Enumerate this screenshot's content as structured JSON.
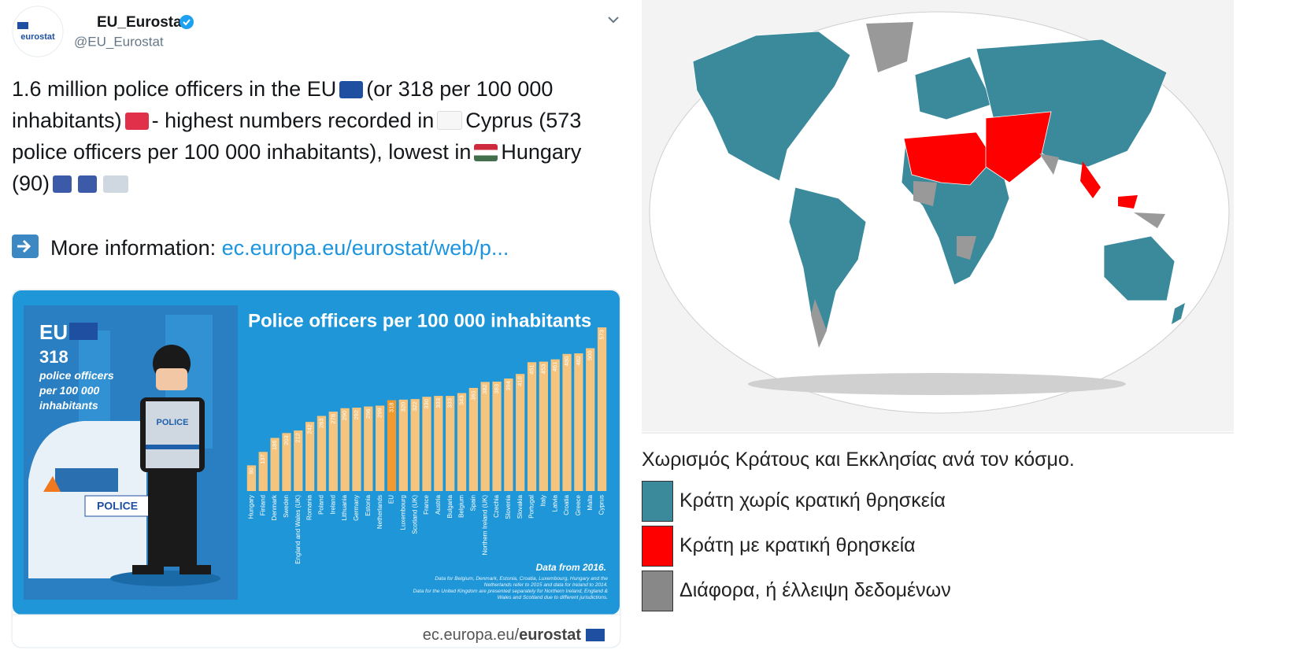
{
  "tweet": {
    "avatar_label": "eurostat",
    "author": "EU_Eurostat",
    "handle": "@EU_Eurostat",
    "text": [
      "1.6 million police officers in the EU",
      "(or 318 per 100 000 inhabitants)",
      "- highest numbers recorded in",
      "Cyprus (573 police officers per 100 000 inhabitants), lowest in",
      "Hungary (90)"
    ],
    "more_info_label": "More information:",
    "link": "ec.europa.eu/eurostat/web/p..."
  },
  "infographic": {
    "eu_label": "EU",
    "eu_value": 318,
    "eu_caption": "police officers per 100 000 inhabitants",
    "police_labels": [
      "POLICE",
      "POLICE"
    ],
    "data_note": "Data from 2016.",
    "footnotes": [
      "Data for Belgium, Denmark, Estonia, Croatia, Luxembourg, Hungary and the Netherlands refer to 2015 and data for Ireland to 2014.",
      "Data for the United Kingdom are presented separately for Northern Ireland, England & Wales and Scotland due to different jurisdictions."
    ],
    "footer_domain": "ec.europa.eu/",
    "footer_brand": "eurostat"
  },
  "chart_data": {
    "type": "bar",
    "title": "Police officers per 100 000 inhabitants",
    "categories": [
      "Hungary",
      "Finland",
      "Denmark",
      "Sweden",
      "England and Wales (UK)",
      "Romania",
      "Poland",
      "Ireland",
      "Lithuania",
      "Germany",
      "Estonia",
      "Netherlands",
      "EU",
      "Luxembourg",
      "Scotland (UK)",
      "France",
      "Austria",
      "Bulgaria",
      "Belgium",
      "Spain",
      "Northern Ireland (UK)",
      "Czechia",
      "Slovenia",
      "Slovakia",
      "Portugal",
      "Italy",
      "Latvia",
      "Croatia",
      "Greece",
      "Malta",
      "Cyprus"
    ],
    "values": [
      90,
      137,
      186,
      203,
      212,
      242,
      263,
      278,
      290,
      292,
      296,
      299,
      318,
      320,
      322,
      330,
      333,
      333,
      343,
      361,
      382,
      383,
      394,
      410,
      451,
      453,
      461,
      480,
      482,
      500,
      573
    ],
    "color": "#f5c47e",
    "highlight": {
      "category": "EU",
      "color": "#f29a2e"
    }
  },
  "map": {
    "legend_title": "Χωρισμός Κράτους και Εκκλησίας ανά τον κόσμο.",
    "legend": [
      {
        "label": "Κράτη χωρίς κρατική θρησκεία",
        "color": "#3a8a9c"
      },
      {
        "label": "Κράτη με κρατική θρησκεία",
        "color": "#ff0000"
      },
      {
        "label": "Διάφορα, ή έλλειψη δεδομένων",
        "color": "#888888"
      }
    ]
  }
}
